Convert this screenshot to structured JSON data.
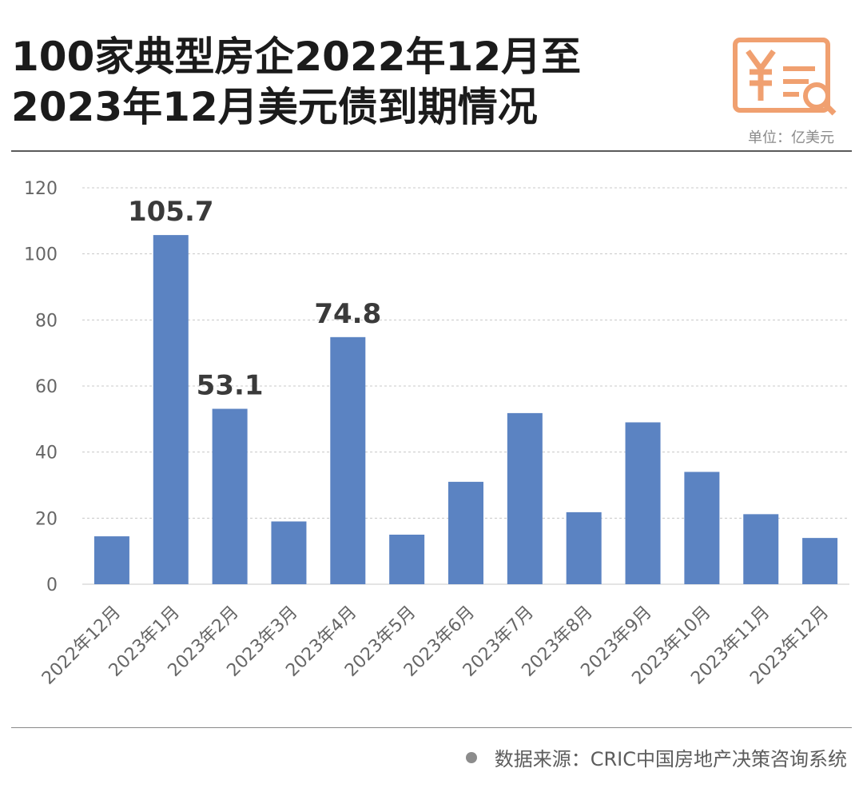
{
  "header": {
    "title_line1": "100家典型房企2022年12月至",
    "title_line2": "2023年12月美元债到期情况",
    "unit": "单位：亿美元"
  },
  "footer": {
    "source": "数据来源：CRIC中国房地产决策咨询系统"
  },
  "colors": {
    "bar": "#5b83c2",
    "logo": "#f0a070",
    "grid": "#c8c8c8",
    "axis_text": "#666666"
  },
  "chart_data": {
    "type": "bar",
    "title": "100家典型房企2022年12月至2023年12月美元债到期情况",
    "categories": [
      "2022年12月",
      "2023年1月",
      "2023年2月",
      "2023年3月",
      "2023年4月",
      "2023年5月",
      "2023年6月",
      "2023年7月",
      "2023年8月",
      "2023年9月",
      "2023年10月",
      "2023年11月",
      "2023年12月"
    ],
    "values": [
      14.5,
      105.7,
      53.1,
      19,
      74.8,
      15,
      31,
      51.8,
      21.8,
      49,
      34,
      21.2,
      14
    ],
    "data_labels": [
      {
        "index": 1,
        "text": "105.7"
      },
      {
        "index": 2,
        "text": "53.1"
      },
      {
        "index": 4,
        "text": "74.8"
      }
    ],
    "ylim": [
      0,
      120
    ],
    "yticks": [
      0,
      20,
      40,
      60,
      80,
      100,
      120
    ],
    "ylabel": "",
    "xlabel": "",
    "grid": true,
    "unit": "亿美元"
  }
}
